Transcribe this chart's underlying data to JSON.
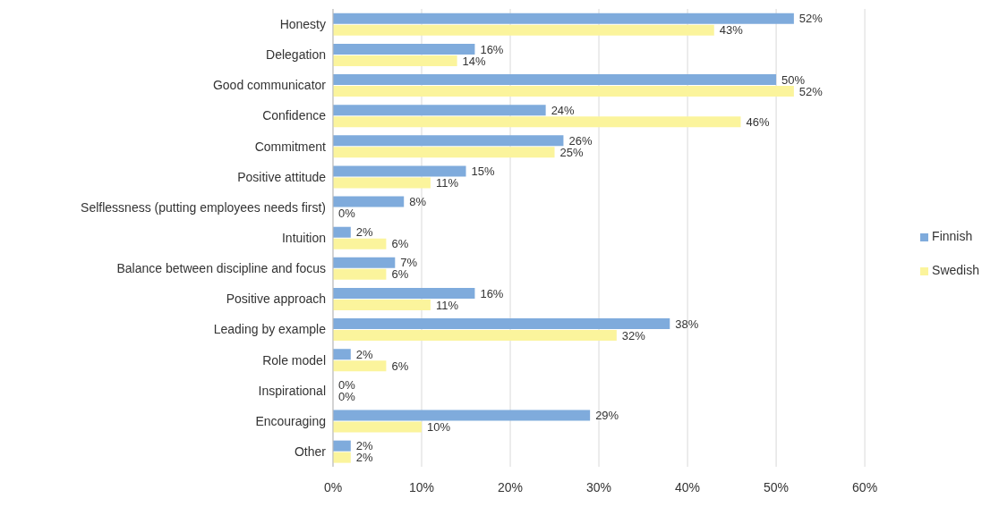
{
  "chart_data": {
    "type": "bar",
    "orientation": "horizontal",
    "categories": [
      "Honesty",
      "Delegation",
      "Good communicator",
      "Confidence",
      "Commitment",
      "Positive attitude",
      "Selflessness (putting employees needs first)",
      "Intuition",
      "Balance between discipline and focus",
      "Positive approach",
      "Leading by example",
      "Role model",
      "Inspirational",
      "Encouraging",
      "Other"
    ],
    "series": [
      {
        "name": "Finnish",
        "color": "#7fabdc",
        "values": [
          52,
          16,
          50,
          24,
          26,
          15,
          8,
          2,
          7,
          16,
          38,
          2,
          0,
          29,
          2
        ],
        "value_labels": [
          "52%",
          "16%",
          "50%",
          "24%",
          "26%",
          "15%",
          "8%",
          "2%",
          "7%",
          "16%",
          "38%",
          "2%",
          "0%",
          "29%",
          "2%"
        ]
      },
      {
        "name": "Swedish",
        "color": "#fbf49c",
        "values": [
          43,
          14,
          52,
          46,
          25,
          11,
          0,
          6,
          6,
          11,
          32,
          6,
          0,
          10,
          2
        ],
        "value_labels": [
          "43%",
          "14%",
          "52%",
          "46%",
          "25%",
          "11%",
          "0%",
          "6%",
          "6%",
          "11%",
          "32%",
          "6%",
          "0%",
          "10%",
          "2%"
        ]
      }
    ],
    "xlim": [
      0,
      60
    ],
    "xticks": [
      {
        "value": 0,
        "label": "0%"
      },
      {
        "value": 10,
        "label": "10%"
      },
      {
        "value": 20,
        "label": "20%"
      },
      {
        "value": 30,
        "label": "30%"
      },
      {
        "value": 40,
        "label": "40%"
      },
      {
        "value": 50,
        "label": "50%"
      },
      {
        "value": 60,
        "label": "60%"
      }
    ],
    "grid": "x",
    "legend": "right"
  }
}
